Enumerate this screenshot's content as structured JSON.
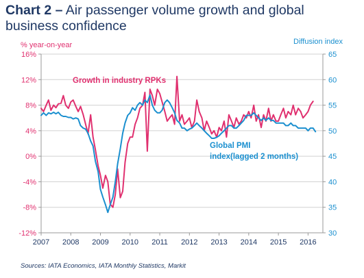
{
  "title": {
    "lead": "Chart 2 –",
    "rest": "Air passenger volume growth and global business confidence"
  },
  "source": "Sources: IATA Economics, IATA Monthly Statistics, Markit",
  "colors": {
    "rpk": "#e0306f",
    "pmi": "#1a8fcf",
    "title": "#1f3864",
    "left_axis": "#e0306f",
    "right_axis": "#1a8fcf",
    "grid": "#d0d0d0"
  },
  "chart_data": {
    "type": "line",
    "left_axis": {
      "label": "% year-on-year",
      "range": [
        -12,
        16
      ],
      "ticks": [
        16,
        12,
        8,
        4,
        0,
        -4,
        -8,
        -12
      ],
      "tick_labels": [
        "16%",
        "12%",
        "8%",
        "4%",
        "0%",
        "-4%",
        "-8%",
        "-12%"
      ]
    },
    "right_axis": {
      "label": "Diffusion index",
      "range": [
        30,
        65
      ],
      "ticks": [
        65,
        60,
        55,
        50,
        45,
        40,
        35,
        30
      ],
      "tick_labels": [
        "65",
        "60",
        "55",
        "50",
        "45",
        "40",
        "35",
        "30"
      ]
    },
    "x_axis": {
      "range": [
        2007.0,
        2016.5
      ],
      "ticks": [
        2007,
        2008,
        2009,
        2010,
        2011,
        2012,
        2013,
        2014,
        2015,
        2016
      ],
      "tick_labels": [
        "2007",
        "2008",
        "2009",
        "2010",
        "2011",
        "2012",
        "2013",
        "2014",
        "2015",
        "2016"
      ]
    },
    "grid": true,
    "series": [
      {
        "name": "Growth in industry RPKs",
        "axis": "left",
        "annotation": "Growth in industry RPKs",
        "points": [
          [
            2007.0,
            7.5
          ],
          [
            2007.08,
            7.0
          ],
          [
            2007.17,
            8.0
          ],
          [
            2007.25,
            8.8
          ],
          [
            2007.33,
            7.2
          ],
          [
            2007.42,
            8.0
          ],
          [
            2007.5,
            7.6
          ],
          [
            2007.58,
            8.2
          ],
          [
            2007.67,
            8.3
          ],
          [
            2007.75,
            9.5
          ],
          [
            2007.83,
            8.0
          ],
          [
            2007.92,
            7.5
          ],
          [
            2008.0,
            8.5
          ],
          [
            2008.08,
            8.8
          ],
          [
            2008.17,
            7.8
          ],
          [
            2008.25,
            7.0
          ],
          [
            2008.33,
            7.8
          ],
          [
            2008.42,
            6.5
          ],
          [
            2008.5,
            5.0
          ],
          [
            2008.58,
            3.5
          ],
          [
            2008.67,
            6.5
          ],
          [
            2008.75,
            3.0
          ],
          [
            2008.83,
            1.0
          ],
          [
            2008.92,
            -1.5
          ],
          [
            2009.0,
            -3.0
          ],
          [
            2009.08,
            -5.0
          ],
          [
            2009.17,
            -3.0
          ],
          [
            2009.25,
            -4.0
          ],
          [
            2009.33,
            -7.5
          ],
          [
            2009.42,
            -8.0
          ],
          [
            2009.5,
            -6.0
          ],
          [
            2009.58,
            -2.0
          ],
          [
            2009.67,
            -6.5
          ],
          [
            2009.75,
            -5.5
          ],
          [
            2009.83,
            -1.0
          ],
          [
            2009.92,
            2.0
          ],
          [
            2010.0,
            3.0
          ],
          [
            2010.08,
            3.0
          ],
          [
            2010.17,
            5.0
          ],
          [
            2010.25,
            6.0
          ],
          [
            2010.33,
            7.5
          ],
          [
            2010.42,
            8.0
          ],
          [
            2010.5,
            10.0
          ],
          [
            2010.58,
            0.8
          ],
          [
            2010.67,
            10.5
          ],
          [
            2010.75,
            9.5
          ],
          [
            2010.83,
            8.0
          ],
          [
            2010.92,
            10.5
          ],
          [
            2011.0,
            9.8
          ],
          [
            2011.08,
            8.5
          ],
          [
            2011.17,
            7.0
          ],
          [
            2011.25,
            5.5
          ],
          [
            2011.33,
            6.0
          ],
          [
            2011.42,
            6.5
          ],
          [
            2011.5,
            5.0
          ],
          [
            2011.58,
            12.5
          ],
          [
            2011.67,
            5.5
          ],
          [
            2011.75,
            6.5
          ],
          [
            2011.83,
            5.0
          ],
          [
            2011.92,
            5.5
          ],
          [
            2012.0,
            6.0
          ],
          [
            2012.08,
            4.5
          ],
          [
            2012.17,
            5.5
          ],
          [
            2012.25,
            8.8
          ],
          [
            2012.33,
            7.0
          ],
          [
            2012.42,
            6.0
          ],
          [
            2012.5,
            4.0
          ],
          [
            2012.58,
            5.5
          ],
          [
            2012.67,
            4.5
          ],
          [
            2012.75,
            3.5
          ],
          [
            2012.83,
            4.0
          ],
          [
            2012.92,
            3.0
          ],
          [
            2013.0,
            4.5
          ],
          [
            2013.08,
            4.0
          ],
          [
            2013.17,
            5.5
          ],
          [
            2013.25,
            3.0
          ],
          [
            2013.33,
            6.5
          ],
          [
            2013.42,
            5.5
          ],
          [
            2013.5,
            4.5
          ],
          [
            2013.58,
            6.0
          ],
          [
            2013.67,
            5.0
          ],
          [
            2013.75,
            5.5
          ],
          [
            2013.83,
            6.5
          ],
          [
            2013.92,
            6.0
          ],
          [
            2014.0,
            7.0
          ],
          [
            2014.08,
            6.0
          ],
          [
            2014.17,
            8.0
          ],
          [
            2014.25,
            5.5
          ],
          [
            2014.33,
            6.5
          ],
          [
            2014.42,
            4.5
          ],
          [
            2014.5,
            6.5
          ],
          [
            2014.58,
            5.5
          ],
          [
            2014.67,
            7.5
          ],
          [
            2014.75,
            5.5
          ],
          [
            2014.83,
            6.5
          ],
          [
            2014.92,
            5.5
          ],
          [
            2015.0,
            5.5
          ],
          [
            2015.08,
            6.5
          ],
          [
            2015.17,
            7.5
          ],
          [
            2015.25,
            6.0
          ],
          [
            2015.33,
            7.0
          ],
          [
            2015.42,
            6.5
          ],
          [
            2015.5,
            8.0
          ],
          [
            2015.58,
            6.5
          ],
          [
            2015.67,
            7.5
          ],
          [
            2015.75,
            7.0
          ],
          [
            2015.83,
            6.0
          ],
          [
            2015.92,
            6.5
          ],
          [
            2016.0,
            7.0
          ],
          [
            2016.08,
            8.0
          ],
          [
            2016.17,
            8.6
          ]
        ]
      },
      {
        "name": "Global PMI index(lagged 2 months)",
        "axis": "right",
        "annotation_lines": [
          "Global PMI",
          "index(lagged 2 months)"
        ],
        "points": [
          [
            2007.0,
            53.0
          ],
          [
            2007.08,
            53.5
          ],
          [
            2007.17,
            53.0
          ],
          [
            2007.25,
            53.5
          ],
          [
            2007.33,
            53.3
          ],
          [
            2007.42,
            53.6
          ],
          [
            2007.5,
            53.3
          ],
          [
            2007.58,
            53.6
          ],
          [
            2007.67,
            53.0
          ],
          [
            2007.75,
            52.8
          ],
          [
            2007.83,
            52.8
          ],
          [
            2007.92,
            52.6
          ],
          [
            2008.0,
            52.6
          ],
          [
            2008.08,
            52.3
          ],
          [
            2008.17,
            52.5
          ],
          [
            2008.25,
            52.3
          ],
          [
            2008.33,
            51.0
          ],
          [
            2008.42,
            50.5
          ],
          [
            2008.5,
            50.3
          ],
          [
            2008.58,
            49.5
          ],
          [
            2008.67,
            48.0
          ],
          [
            2008.75,
            47.0
          ],
          [
            2008.83,
            44.0
          ],
          [
            2008.92,
            42.0
          ],
          [
            2009.0,
            38.5
          ],
          [
            2009.08,
            37.0
          ],
          [
            2009.17,
            35.5
          ],
          [
            2009.25,
            34.0
          ],
          [
            2009.33,
            35.5
          ],
          [
            2009.42,
            37.0
          ],
          [
            2009.5,
            40.0
          ],
          [
            2009.58,
            43.5
          ],
          [
            2009.67,
            46.5
          ],
          [
            2009.75,
            49.5
          ],
          [
            2009.83,
            51.5
          ],
          [
            2009.92,
            53.0
          ],
          [
            2010.0,
            53.5
          ],
          [
            2010.08,
            54.5
          ],
          [
            2010.17,
            54.0
          ],
          [
            2010.25,
            55.0
          ],
          [
            2010.33,
            55.5
          ],
          [
            2010.42,
            55.0
          ],
          [
            2010.5,
            56.0
          ],
          [
            2010.58,
            55.5
          ],
          [
            2010.67,
            57.0
          ],
          [
            2010.75,
            55.0
          ],
          [
            2010.83,
            54.0
          ],
          [
            2010.92,
            53.5
          ],
          [
            2011.0,
            53.5
          ],
          [
            2011.08,
            54.0
          ],
          [
            2011.17,
            55.5
          ],
          [
            2011.25,
            56.0
          ],
          [
            2011.33,
            55.5
          ],
          [
            2011.42,
            54.5
          ],
          [
            2011.5,
            53.5
          ],
          [
            2011.58,
            52.0
          ],
          [
            2011.67,
            51.5
          ],
          [
            2011.75,
            50.5
          ],
          [
            2011.83,
            50.5
          ],
          [
            2011.92,
            50.0
          ],
          [
            2012.0,
            50.3
          ],
          [
            2012.08,
            50.5
          ],
          [
            2012.17,
            51.0
          ],
          [
            2012.25,
            51.5
          ],
          [
            2012.33,
            51.0
          ],
          [
            2012.42,
            50.5
          ],
          [
            2012.5,
            50.0
          ],
          [
            2012.58,
            49.5
          ],
          [
            2012.67,
            49.0
          ],
          [
            2012.75,
            48.5
          ],
          [
            2012.83,
            48.5
          ],
          [
            2012.92,
            48.7
          ],
          [
            2013.0,
            49.0
          ],
          [
            2013.08,
            49.5
          ],
          [
            2013.17,
            50.0
          ],
          [
            2013.25,
            50.5
          ],
          [
            2013.33,
            51.0
          ],
          [
            2013.42,
            51.0
          ],
          [
            2013.5,
            50.5
          ],
          [
            2013.58,
            50.5
          ],
          [
            2013.67,
            51.0
          ],
          [
            2013.75,
            51.5
          ],
          [
            2013.83,
            52.0
          ],
          [
            2013.92,
            53.0
          ],
          [
            2014.0,
            53.0
          ],
          [
            2014.08,
            53.0
          ],
          [
            2014.17,
            53.5
          ],
          [
            2014.25,
            53.0
          ],
          [
            2014.33,
            52.5
          ],
          [
            2014.42,
            52.0
          ],
          [
            2014.5,
            52.5
          ],
          [
            2014.58,
            52.0
          ],
          [
            2014.67,
            52.5
          ],
          [
            2014.75,
            52.0
          ],
          [
            2014.83,
            52.0
          ],
          [
            2014.92,
            51.5
          ],
          [
            2015.0,
            51.5
          ],
          [
            2015.08,
            51.5
          ],
          [
            2015.17,
            51.5
          ],
          [
            2015.25,
            51.0
          ],
          [
            2015.33,
            51.0
          ],
          [
            2015.42,
            51.5
          ],
          [
            2015.5,
            51.0
          ],
          [
            2015.58,
            51.0
          ],
          [
            2015.67,
            50.5
          ],
          [
            2015.75,
            50.5
          ],
          [
            2015.83,
            50.5
          ],
          [
            2015.92,
            50.5
          ],
          [
            2016.0,
            50.0
          ],
          [
            2016.08,
            50.5
          ],
          [
            2016.17,
            50.5
          ],
          [
            2016.25,
            49.8
          ]
        ]
      }
    ]
  }
}
